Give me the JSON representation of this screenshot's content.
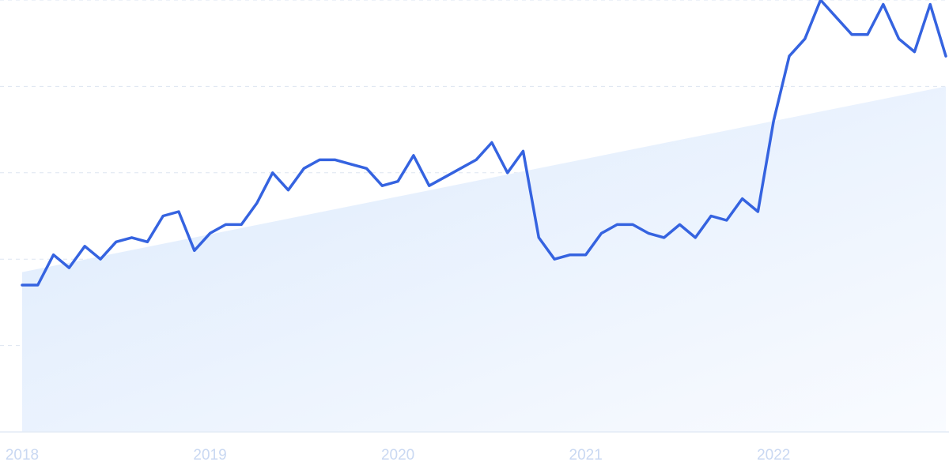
{
  "chart_data": {
    "type": "line",
    "title": "",
    "xlabel": "",
    "ylabel": "",
    "x_tick_labels": [
      "2018",
      "2019",
      "2020",
      "2021",
      "2022"
    ],
    "ylim": [
      0,
      100
    ],
    "xlim": [
      "2018-01",
      "2022-12"
    ],
    "grid": "horizontal-dashed",
    "trendline": true,
    "series": [
      {
        "x": [
          "2018-01",
          "2018-02",
          "2018-03",
          "2018-04",
          "2018-05",
          "2018-06",
          "2018-07",
          "2018-08",
          "2018-09",
          "2018-10",
          "2018-11",
          "2018-12",
          "2019-01",
          "2019-02",
          "2019-03",
          "2019-04",
          "2019-05",
          "2019-06",
          "2019-07",
          "2019-08",
          "2019-09",
          "2019-10",
          "2019-11",
          "2019-12",
          "2020-01",
          "2020-02",
          "2020-03",
          "2020-04",
          "2020-05",
          "2020-06",
          "2020-07",
          "2020-08",
          "2020-09",
          "2020-10",
          "2020-11",
          "2020-12",
          "2021-01",
          "2021-02",
          "2021-03",
          "2021-04",
          "2021-05",
          "2021-06",
          "2021-07",
          "2021-08",
          "2021-09",
          "2021-10",
          "2021-11",
          "2021-12",
          "2022-01",
          "2022-02",
          "2022-03",
          "2022-04",
          "2022-05",
          "2022-06",
          "2022-07",
          "2022-08",
          "2022-09",
          "2022-10",
          "2022-11",
          "2022-12"
        ],
        "values": [
          34,
          34,
          41,
          38,
          43,
          40,
          44,
          45,
          44,
          50,
          51,
          42,
          46,
          48,
          48,
          53,
          60,
          56,
          61,
          63,
          63,
          62,
          61,
          57,
          58,
          64,
          57,
          59,
          61,
          63,
          67,
          60,
          65,
          45,
          40,
          41,
          41,
          46,
          48,
          48,
          46,
          45,
          48,
          45,
          50,
          49,
          54,
          51,
          72,
          87,
          91,
          100,
          96,
          92,
          92,
          99,
          91,
          88,
          99,
          87
        ]
      }
    ],
    "trend": {
      "start": 37,
      "end": 80
    }
  },
  "colors": {
    "line": "#3563e0",
    "fill_top": "#dceafc",
    "fill_bottom": "#f9fbff",
    "grid": "#dde5f1",
    "axis": "#e3ebf6",
    "tick_text": "#c9d8f2"
  }
}
